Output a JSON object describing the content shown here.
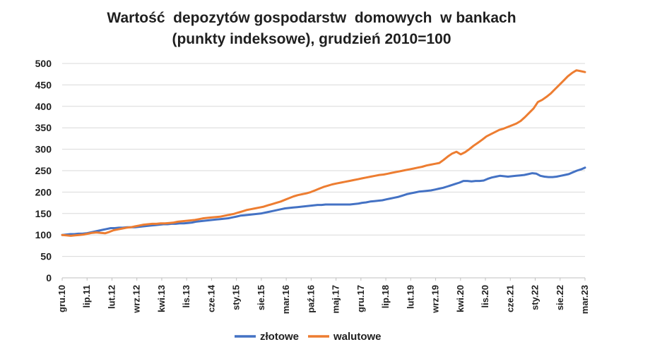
{
  "chart_data": {
    "type": "line",
    "title_line1": "Wartość  depozytów gospodarstw  domowych  w bankach",
    "title_line2": "(punkty indeksowe), grudzień 2010=100",
    "ylim": [
      0,
      500
    ],
    "yticks": [
      0,
      50,
      100,
      150,
      200,
      250,
      300,
      350,
      400,
      450,
      500
    ],
    "x_tick_labels": [
      "gru.10",
      "lip.11",
      "lut.12",
      "wrz.12",
      "kwi.13",
      "lis.13",
      "cze.14",
      "sty.15",
      "sie.15",
      "mar.16",
      "paź.16",
      "maj.17",
      "gru.17",
      "lip.18",
      "lut.19",
      "wrz.19",
      "kwi.20",
      "lis.20",
      "cze.21",
      "sty.22",
      "sie.22",
      "mar.23"
    ],
    "legend_position": "bottom",
    "grid": true,
    "series": [
      {
        "name": "złotowe",
        "color": "#4472c4",
        "values": [
          100,
          101,
          102,
          102,
          103,
          103,
          104,
          106,
          108,
          110,
          112,
          114,
          116,
          116,
          117,
          117,
          118,
          118,
          118,
          119,
          120,
          121,
          122,
          123,
          124,
          125,
          125,
          126,
          126,
          127,
          127,
          128,
          129,
          131,
          132,
          133,
          134,
          135,
          136,
          137,
          138,
          139,
          141,
          143,
          145,
          146,
          147,
          148,
          149,
          150,
          152,
          154,
          156,
          158,
          160,
          162,
          163,
          164,
          165,
          166,
          167,
          168,
          169,
          170,
          170,
          171,
          171,
          171,
          171,
          171,
          171,
          171,
          172,
          173,
          175,
          176,
          178,
          179,
          180,
          181,
          183,
          185,
          187,
          189,
          192,
          195,
          197,
          199,
          201,
          202,
          203,
          204,
          206,
          208,
          210,
          213,
          216,
          219,
          222,
          226,
          226,
          225,
          226,
          226,
          227,
          231,
          234,
          236,
          238,
          237,
          236,
          237,
          238,
          239,
          240,
          242,
          244,
          243,
          238,
          236,
          235,
          235,
          236,
          238,
          240,
          242,
          246,
          250,
          253,
          257
        ]
      },
      {
        "name": "walutowe",
        "color": "#ed7d31",
        "values": [
          100,
          99,
          98,
          99,
          100,
          101,
          103,
          105,
          106,
          105,
          104,
          107,
          111,
          113,
          115,
          117,
          118,
          120,
          122,
          124,
          125,
          126,
          126,
          127,
          127,
          128,
          129,
          131,
          132,
          133,
          134,
          135,
          137,
          139,
          140,
          141,
          142,
          143,
          145,
          147,
          149,
          152,
          155,
          158,
          160,
          162,
          164,
          166,
          169,
          172,
          175,
          178,
          182,
          186,
          190,
          193,
          195,
          197,
          200,
          204,
          208,
          212,
          215,
          218,
          220,
          222,
          224,
          226,
          228,
          230,
          232,
          234,
          236,
          238,
          240,
          241,
          243,
          245,
          247,
          249,
          251,
          253,
          255,
          257,
          259,
          262,
          264,
          266,
          268,
          275,
          283,
          290,
          294,
          288,
          293,
          300,
          308,
          315,
          322,
          330,
          335,
          340,
          345,
          348,
          352,
          356,
          360,
          366,
          375,
          385,
          395,
          410,
          415,
          422,
          430,
          440,
          450,
          460,
          470,
          478,
          484,
          482,
          480
        ]
      }
    ]
  }
}
